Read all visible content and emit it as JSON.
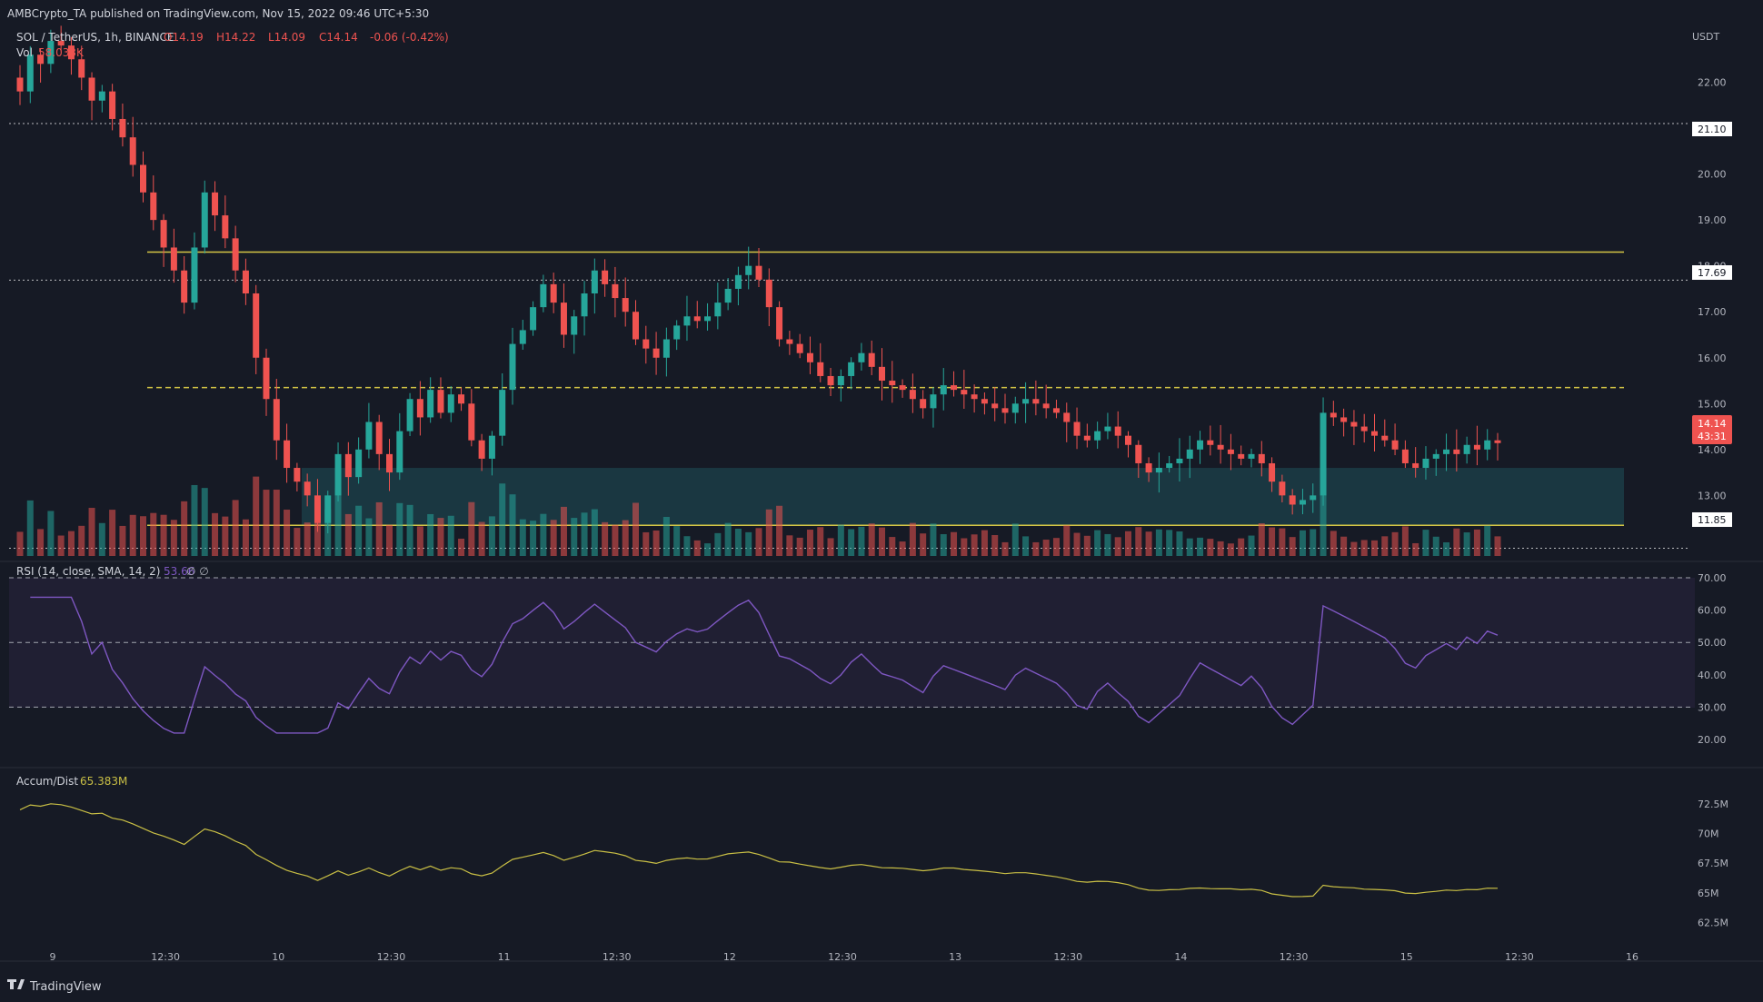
{
  "header": {
    "published": "AMBCrypto_TA published on TradingView.com, Nov 15, 2022 09:46 UTC+5:30",
    "symbol": "SOL / TetherUS, 1h, BINANCE",
    "o": "O14.19",
    "h": "H14.22",
    "l": "L14.09",
    "c": "C14.14",
    "change": "-0.06 (-0.42%)",
    "vol_label": "Vol",
    "vol_value": "58.033K"
  },
  "currency": "USDT",
  "last_price": "14.14",
  "countdown": "43:31",
  "level_labels": {
    "l2110": "21.10",
    "l1769": "17.69",
    "l1185": "11.85"
  },
  "rsi_label": "RSI (14, close, SMA, 14, 2)",
  "rsi_value": "53.66",
  "rsi_extra": "∅ ∅",
  "ad_label": "Accum/Dist",
  "ad_value": "65.383M",
  "footer_brand": "TradingView",
  "colors": {
    "background": "#161a25",
    "up": "#26a69a",
    "down": "#ef5350",
    "level": "#d4c545",
    "rsi": "#7e57c2",
    "ad": "#c9bf45",
    "zone": "#1f5a63"
  },
  "chart_data": [
    {
      "type": "candlestick",
      "title": "SOL / TetherUS, 1h, BINANCE",
      "xlabel": "",
      "ylabel": "USDT",
      "x_ticks": [
        "9",
        "12:30",
        "10",
        "12:30",
        "11",
        "12:30",
        "12",
        "12:30",
        "13",
        "12:30",
        "14",
        "12:30",
        "15",
        "12:30",
        "16"
      ],
      "y_ticks": [
        "22.00",
        "20.00",
        "19.00",
        "18.00",
        "17.00",
        "16.00",
        "15.00",
        "14.00",
        "13.00"
      ],
      "ylim": [
        11.8,
        23.0
      ],
      "grid": false,
      "closes": [
        21.8,
        22.6,
        22.4,
        22.9,
        22.8,
        22.5,
        22.1,
        21.6,
        21.8,
        21.2,
        20.8,
        20.2,
        19.6,
        19.0,
        18.4,
        17.9,
        17.2,
        18.4,
        19.6,
        19.1,
        18.6,
        17.9,
        17.4,
        16.0,
        15.1,
        14.2,
        13.6,
        13.3,
        13.0,
        12.4,
        13.0,
        13.9,
        13.4,
        14.0,
        14.6,
        13.9,
        13.5,
        14.4,
        15.1,
        14.7,
        15.3,
        14.8,
        15.2,
        15.0,
        14.2,
        13.8,
        14.3,
        15.3,
        16.3,
        16.6,
        17.1,
        17.6,
        17.2,
        16.5,
        16.9,
        17.4,
        17.9,
        17.6,
        17.3,
        17.0,
        16.4,
        16.2,
        16.0,
        16.4,
        16.7,
        16.9,
        16.8,
        16.9,
        17.2,
        17.5,
        17.8,
        18.0,
        17.7,
        17.1,
        16.4,
        16.3,
        16.1,
        15.9,
        15.6,
        15.4,
        15.6,
        15.9,
        16.1,
        15.8,
        15.5,
        15.4,
        15.3,
        15.1,
        14.9,
        15.2,
        15.4,
        15.3,
        15.2,
        15.1,
        15.0,
        14.9,
        14.8,
        15.0,
        15.1,
        15.0,
        14.9,
        14.8,
        14.6,
        14.3,
        14.2,
        14.4,
        14.5,
        14.3,
        14.1,
        13.7,
        13.5,
        13.6,
        13.7,
        13.8,
        14.0,
        14.2,
        14.1,
        14.0,
        13.9,
        13.8,
        13.9,
        13.7,
        13.3,
        13.0,
        12.8,
        12.9,
        13.0,
        14.8,
        14.7,
        14.6,
        14.5,
        14.4,
        14.3,
        14.2,
        14.0,
        13.7,
        13.6,
        13.8,
        13.9,
        14.0,
        13.9,
        14.1,
        14.0,
        14.2,
        14.14
      ],
      "volume_label": "Vol 58.033K",
      "horizontal_levels": [
        21.1,
        18.3,
        17.69,
        15.35,
        12.35,
        11.85
      ],
      "zone": [
        12.35,
        13.6
      ]
    },
    {
      "type": "line",
      "title": "RSI (14, close, SMA, 14, 2)",
      "y_ticks": [
        "70.00",
        "60.00",
        "50.00",
        "40.00",
        "30.00",
        "20.00"
      ],
      "ylim": [
        14,
        72
      ],
      "bands": [
        30,
        50,
        70
      ],
      "last": 53.66
    },
    {
      "type": "line",
      "title": "Accum/Dist",
      "y_ticks": [
        "72.5M",
        "70M",
        "67.5M",
        "65M",
        "62.5M"
      ],
      "ylim": [
        61,
        73.5
      ],
      "last": 65.383
    }
  ]
}
